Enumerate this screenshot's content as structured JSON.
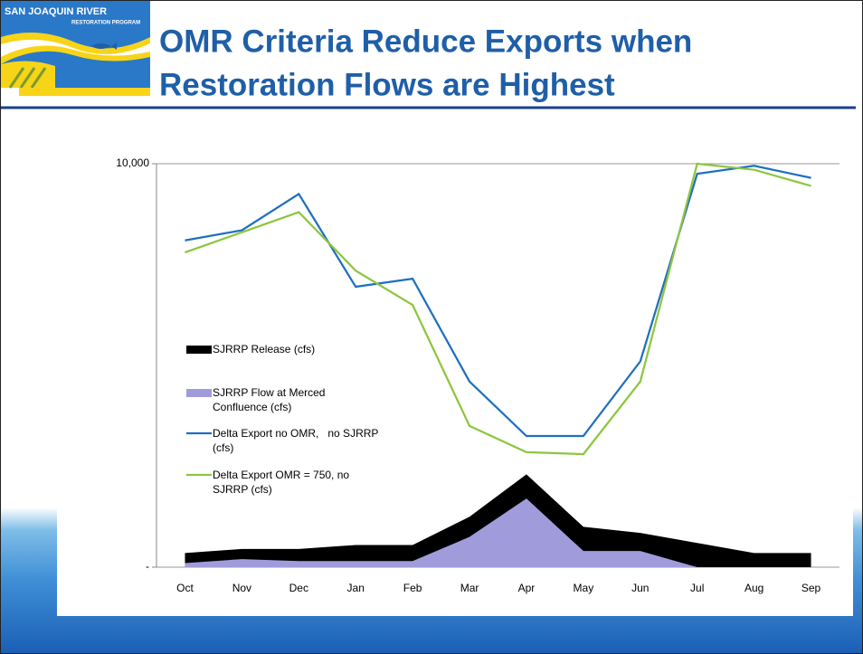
{
  "header": {
    "logo_title": "SAN JOAQUIN RIVER",
    "logo_subtitle": "RESTORATION PROGRAM",
    "title_line1": "OMR Criteria Reduce Exports when",
    "title_line2": "Restoration Flows are Highest"
  },
  "chart_data": {
    "type": "line",
    "categories": [
      "Oct",
      "Nov",
      "Dec",
      "Jan",
      "Feb",
      "Mar",
      "Apr",
      "May",
      "Jun",
      "Jul",
      "Aug",
      "Sep"
    ],
    "series": [
      {
        "name": "SJRRP Release (cfs)",
        "type": "area",
        "color": "#000000",
        "values": [
          350,
          450,
          450,
          550,
          550,
          1250,
          2300,
          1000,
          850,
          600,
          350,
          350
        ]
      },
      {
        "name": "SJRRP Flow at Merced Confluence (cfs)",
        "type": "area",
        "color": "#a09cdc",
        "values": [
          100,
          200,
          150,
          150,
          150,
          750,
          1700,
          400,
          400,
          0,
          0,
          0
        ]
      },
      {
        "name": "Delta Export no OMR,   no SJRRP (cfs)",
        "type": "line",
        "color": "#1f6fbf",
        "values": [
          8100,
          8350,
          9250,
          6950,
          7150,
          4600,
          3250,
          3250,
          5100,
          9750,
          9950,
          9650
        ]
      },
      {
        "name": "Delta Export OMR = 750, no SJRRP (cfs)",
        "type": "line",
        "color": "#8dc63f",
        "values": [
          7800,
          8300,
          8800,
          7350,
          6500,
          3500,
          2850,
          2800,
          4600,
          10000,
          9850,
          9450
        ]
      }
    ],
    "ylim": [
      0,
      10000
    ],
    "yticks": [
      {
        "value": 0,
        "label": "-"
      },
      {
        "value": 10000,
        "label": "10,000"
      }
    ],
    "grid": true
  }
}
